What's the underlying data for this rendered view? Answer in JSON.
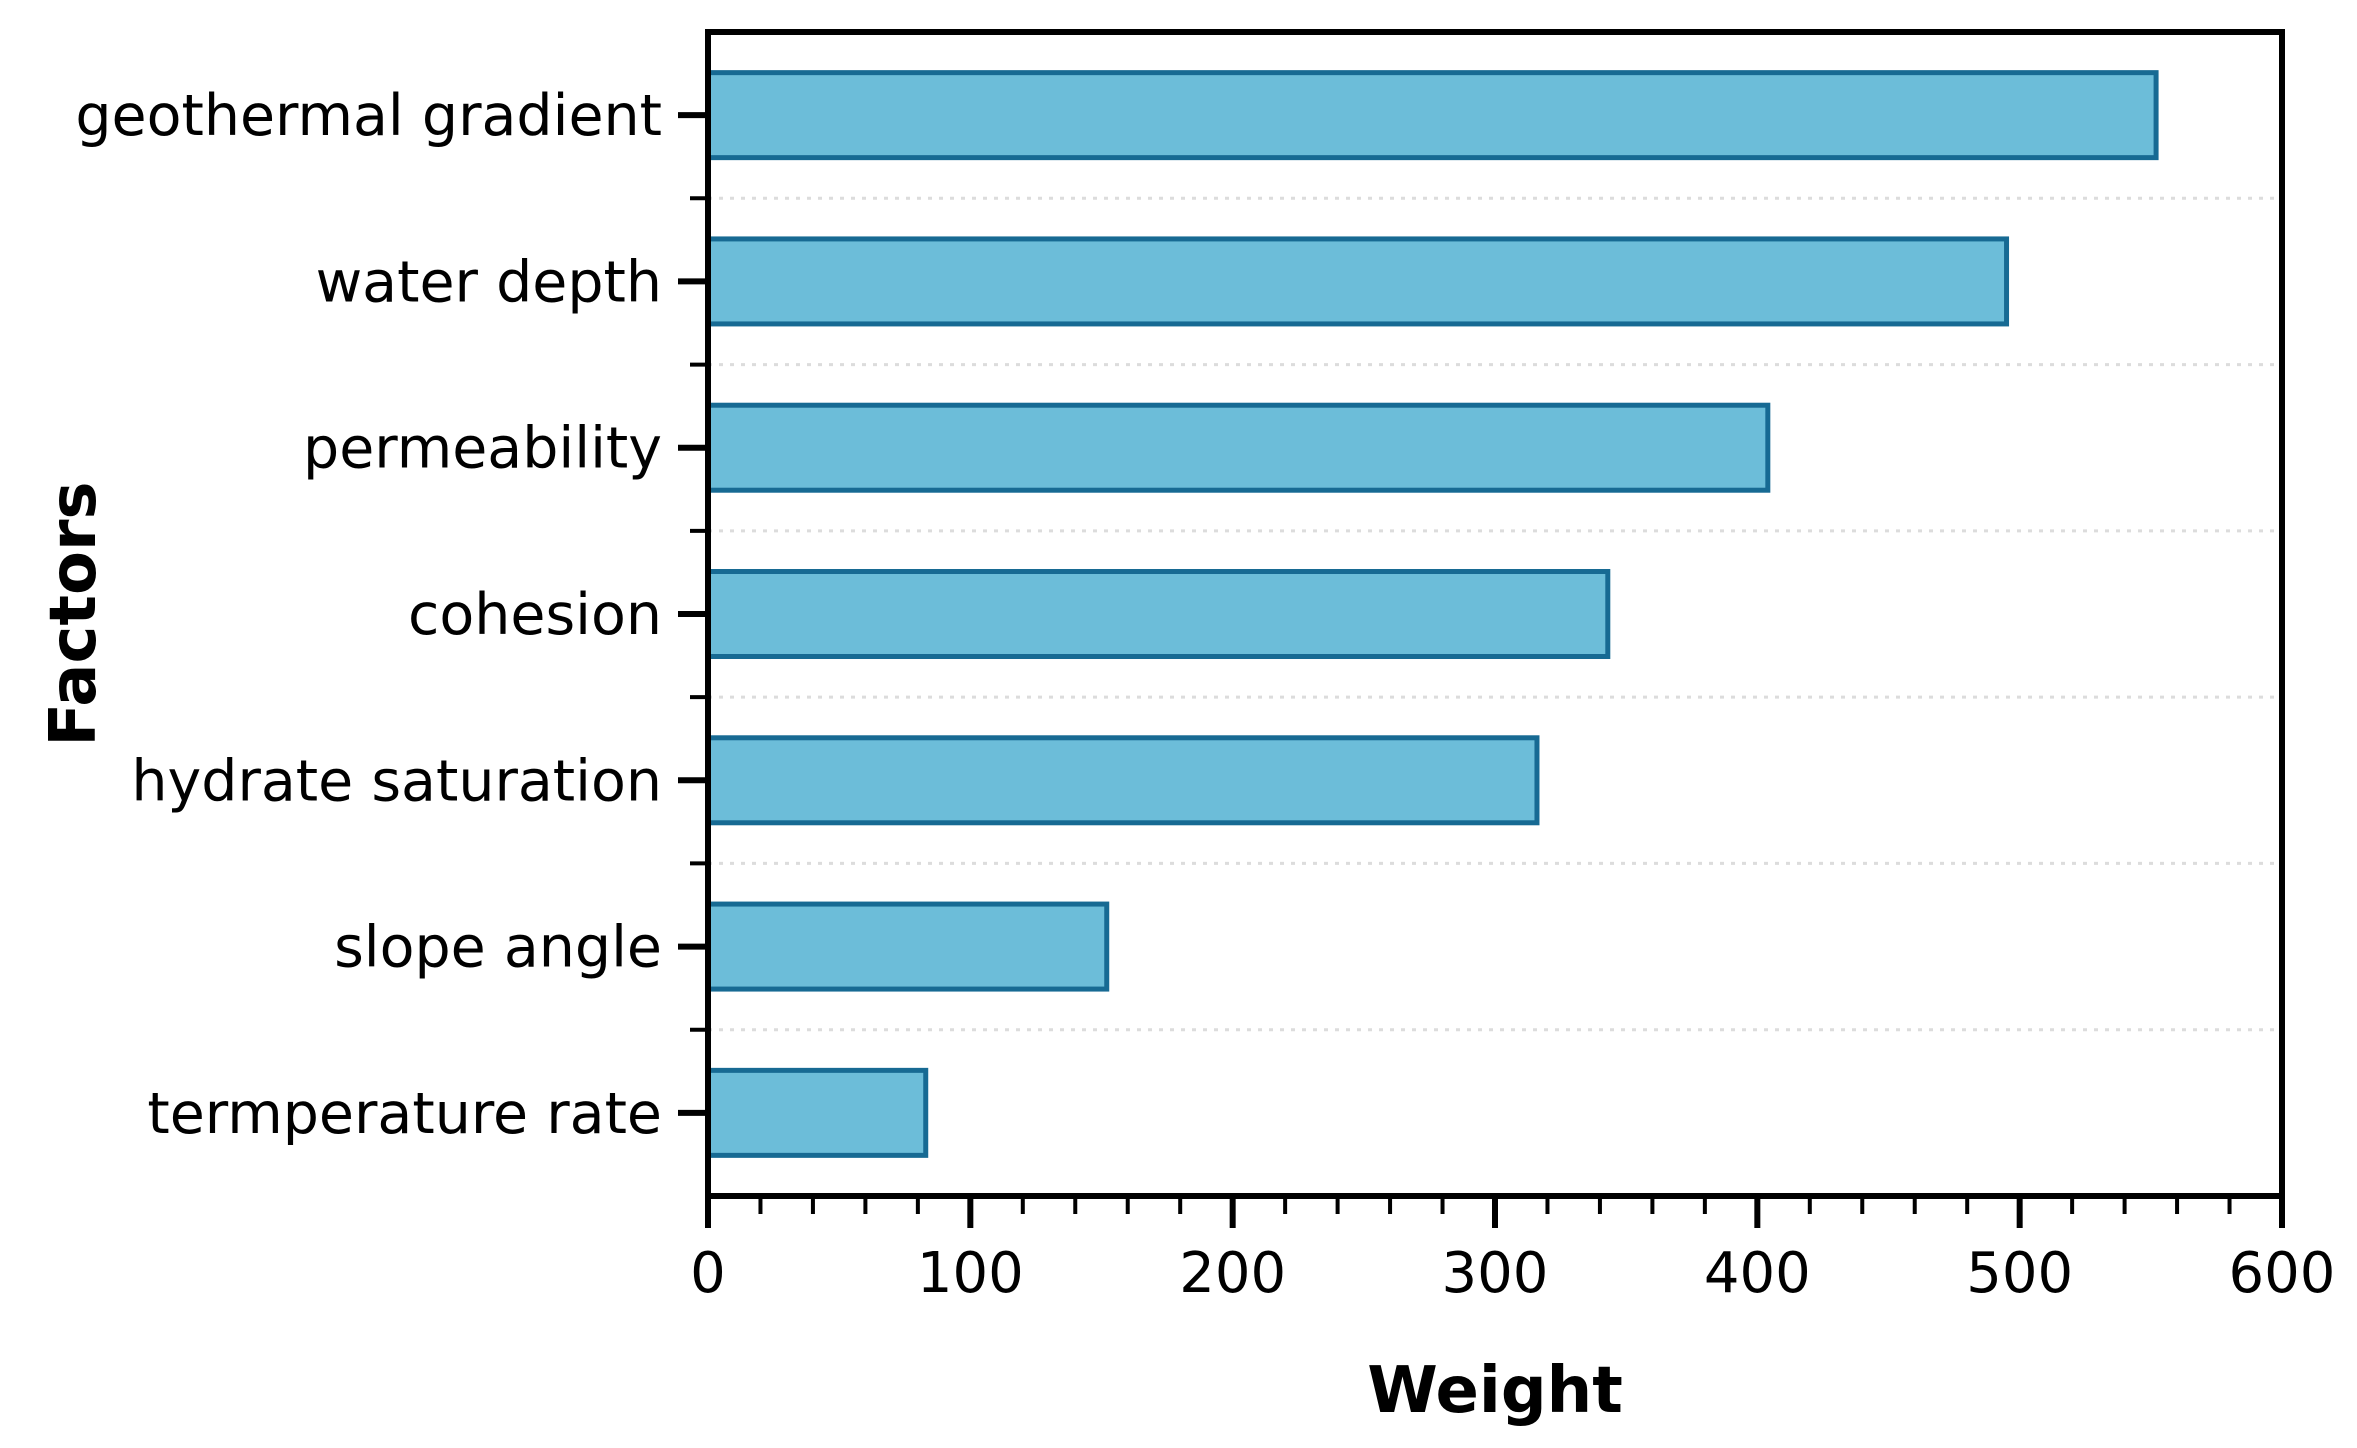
{
  "chart_data": {
    "type": "bar",
    "orientation": "horizontal",
    "title": "",
    "categories": [
      "geothermal gradient",
      "water depth",
      "permeability",
      "cohesion",
      "hydrate saturation",
      "slope angle",
      "termperature rate"
    ],
    "values": [
      552,
      495,
      404,
      343,
      316,
      152,
      83
    ],
    "xlabel": "Weight",
    "ylabel": "Factors",
    "xlim": [
      0,
      600
    ],
    "x_major_ticks": [
      0,
      100,
      200,
      300,
      400,
      500,
      600
    ],
    "x_tick_labels": [
      "0",
      "100",
      "200",
      "300",
      "400",
      "500",
      "600"
    ],
    "x_minor_step": 20,
    "grid": "dotted horizontal gridlines at category boundaries",
    "legend": "none",
    "colors": {
      "bar_fill": "#6CBDD9",
      "bar_stroke": "#176A93",
      "frame": "#000000",
      "grid_line": "#DCDCDC",
      "text": "#000000"
    }
  }
}
